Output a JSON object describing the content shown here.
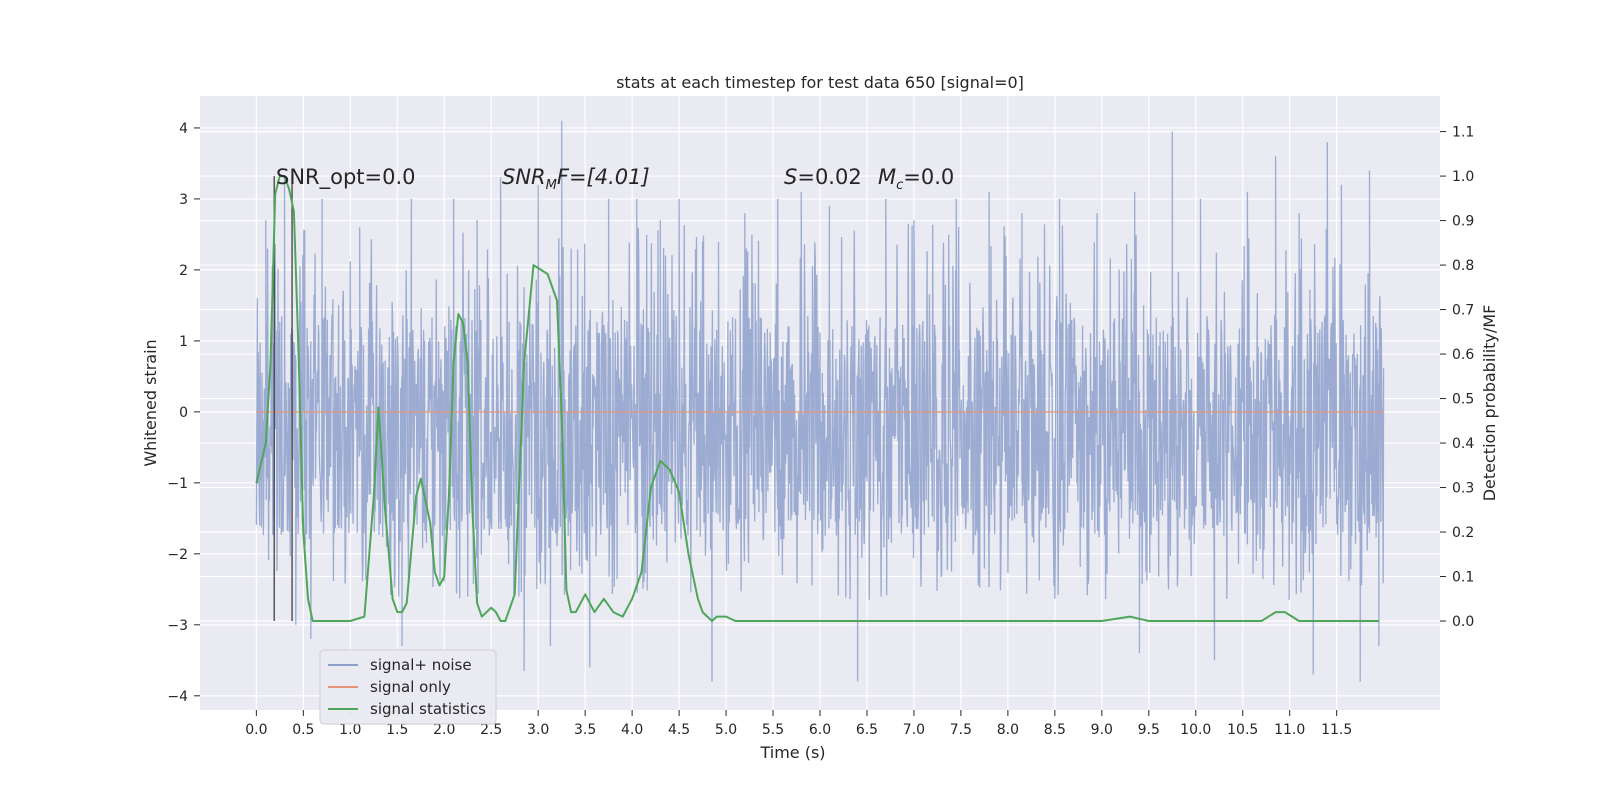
{
  "chart_data": {
    "type": "line",
    "title": "stats at each timestep for test data 650 [signal=0]",
    "xlabel": "Time (s)",
    "ylabel": "Whitened strain",
    "y2label": "Detection probability/MF",
    "xlim": [
      -0.6,
      12.6
    ],
    "ylim": [
      -4.2,
      4.45
    ],
    "y2lim": [
      -0.2,
      1.18
    ],
    "x_ticks": [
      "0.0",
      "0.5",
      "1.0",
      "1.5",
      "2.0",
      "2.5",
      "3.0",
      "3.5",
      "4.0",
      "4.5",
      "5.0",
      "5.5",
      "6.0",
      "6.5",
      "7.0",
      "7.5",
      "8.0",
      "8.5",
      "9.0",
      "9.5",
      "10.0",
      "10.5",
      "11.0",
      "11.5"
    ],
    "y_ticks": [
      "4",
      "3",
      "2",
      "1",
      "0",
      "−1",
      "−2",
      "−3",
      "−4"
    ],
    "y2_ticks": [
      "1.1",
      "1.0",
      "0.9",
      "0.8",
      "0.7",
      "0.6",
      "0.5",
      "0.4",
      "0.3",
      "0.2",
      "0.1",
      "0.0"
    ],
    "grid": true,
    "legend_position": "lower-left",
    "annotations": {
      "snr_opt": "SNR_opt=0.0",
      "snr_mf_symbol": "SNR",
      "snr_mf_sub": "M",
      "snr_mf_rest": "F=[4.01]",
      "s_symbol": "S",
      "s_rest": "=0.02",
      "mc_symbol": "M",
      "mc_sub": "c",
      "mc_rest": "=0.0"
    },
    "vertical_markers_x": [
      0.19,
      0.38
    ],
    "noise_band": {
      "x_range": [
        0.0,
        12.0
      ],
      "dense_low": -1.75,
      "dense_high": 1.35,
      "max_spike": 4.1,
      "min_spike": -3.8
    },
    "series": [
      {
        "name": "signal+ noise",
        "color": "#8da0cb",
        "axis": "left",
        "peaks": [
          {
            "x": 0.1,
            "y": 2.7
          },
          {
            "x": 0.3,
            "y": 3.3
          },
          {
            "x": 0.42,
            "y": -3.0
          },
          {
            "x": 0.58,
            "y": -3.2
          },
          {
            "x": 0.7,
            "y": 3.0
          },
          {
            "x": 1.1,
            "y": 2.6
          },
          {
            "x": 1.55,
            "y": -3.3
          },
          {
            "x": 1.65,
            "y": 3.0
          },
          {
            "x": 2.1,
            "y": 3.0
          },
          {
            "x": 2.35,
            "y": 2.7
          },
          {
            "x": 2.6,
            "y": 3.3
          },
          {
            "x": 2.85,
            "y": -3.65
          },
          {
            "x": 3.0,
            "y": 3.2
          },
          {
            "x": 3.13,
            "y": -3.3
          },
          {
            "x": 3.25,
            "y": 4.1
          },
          {
            "x": 3.35,
            "y": 2.3
          },
          {
            "x": 3.55,
            "y": -3.6
          },
          {
            "x": 3.75,
            "y": 3.0
          },
          {
            "x": 4.05,
            "y": 3.0
          },
          {
            "x": 4.3,
            "y": 2.7
          },
          {
            "x": 4.5,
            "y": 3.0
          },
          {
            "x": 4.85,
            "y": -3.8
          },
          {
            "x": 5.2,
            "y": 2.8
          },
          {
            "x": 5.55,
            "y": 3.0
          },
          {
            "x": 5.8,
            "y": 3.1
          },
          {
            "x": 6.1,
            "y": 2.9
          },
          {
            "x": 6.4,
            "y": -3.8
          },
          {
            "x": 6.7,
            "y": 3.0
          },
          {
            "x": 7.0,
            "y": 2.7
          },
          {
            "x": 7.45,
            "y": 3.0
          },
          {
            "x": 7.8,
            "y": 3.1
          },
          {
            "x": 8.15,
            "y": 2.8
          },
          {
            "x": 8.55,
            "y": 3.0
          },
          {
            "x": 8.95,
            "y": 2.8
          },
          {
            "x": 9.35,
            "y": 3.1
          },
          {
            "x": 9.4,
            "y": -3.4
          },
          {
            "x": 9.75,
            "y": 3.95
          },
          {
            "x": 10.05,
            "y": 3.0
          },
          {
            "x": 10.2,
            "y": -3.5
          },
          {
            "x": 10.55,
            "y": 3.1
          },
          {
            "x": 10.85,
            "y": 3.6
          },
          {
            "x": 11.1,
            "y": 2.8
          },
          {
            "x": 11.25,
            "y": -3.7
          },
          {
            "x": 11.4,
            "y": 3.8
          },
          {
            "x": 11.55,
            "y": 3.2
          },
          {
            "x": 11.75,
            "y": -3.8
          },
          {
            "x": 11.85,
            "y": 3.4
          },
          {
            "x": 11.95,
            "y": -3.3
          }
        ]
      },
      {
        "name": "signal only",
        "color": "#e5967a",
        "axis": "left",
        "x": [
          0.0,
          12.0
        ],
        "y": [
          0.0,
          0.0
        ]
      },
      {
        "name": "signal statistics",
        "color": "#4fa65a",
        "axis": "right",
        "x": [
          0.0,
          0.1,
          0.15,
          0.2,
          0.25,
          0.3,
          0.35,
          0.4,
          0.45,
          0.5,
          0.55,
          0.6,
          0.7,
          1.0,
          1.15,
          1.25,
          1.3,
          1.37,
          1.45,
          1.5,
          1.55,
          1.6,
          1.7,
          1.75,
          1.85,
          1.9,
          1.95,
          2.0,
          2.05,
          2.1,
          2.15,
          2.2,
          2.25,
          2.3,
          2.35,
          2.4,
          2.45,
          2.5,
          2.55,
          2.6,
          2.65,
          2.75,
          2.85,
          2.95,
          3.1,
          3.2,
          3.25,
          3.3,
          3.35,
          3.4,
          3.45,
          3.5,
          3.55,
          3.6,
          3.7,
          3.8,
          3.9,
          4.0,
          4.1,
          4.2,
          4.3,
          4.4,
          4.5,
          4.6,
          4.7,
          4.75,
          4.8,
          4.85,
          4.9,
          4.95,
          5.0,
          5.1,
          5.2,
          5.4,
          5.55,
          5.65,
          5.8,
          6.0,
          6.2,
          7.0,
          7.5,
          8.0,
          8.5,
          9.0,
          9.3,
          9.5,
          10.0,
          10.5,
          10.7,
          10.85,
          10.95,
          11.1,
          11.3,
          11.45,
          11.6,
          11.8,
          11.95
        ],
        "y": [
          0.31,
          0.4,
          0.58,
          0.96,
          1.0,
          1.0,
          0.97,
          0.92,
          0.6,
          0.2,
          0.05,
          0.0,
          0.0,
          0.0,
          0.01,
          0.28,
          0.48,
          0.25,
          0.05,
          0.02,
          0.02,
          0.04,
          0.28,
          0.32,
          0.22,
          0.11,
          0.08,
          0.1,
          0.28,
          0.58,
          0.69,
          0.67,
          0.58,
          0.25,
          0.04,
          0.01,
          0.02,
          0.03,
          0.02,
          0.0,
          0.0,
          0.06,
          0.58,
          0.8,
          0.78,
          0.72,
          0.46,
          0.07,
          0.02,
          0.02,
          0.04,
          0.06,
          0.04,
          0.02,
          0.05,
          0.02,
          0.01,
          0.05,
          0.11,
          0.3,
          0.36,
          0.34,
          0.29,
          0.15,
          0.05,
          0.02,
          0.01,
          0.0,
          0.01,
          0.01,
          0.01,
          0.0,
          0.0,
          0.0,
          0.0,
          0.0,
          0.0,
          0.0,
          0.0,
          0.0,
          0.0,
          0.0,
          0.0,
          0.0,
          0.01,
          0.0,
          0.0,
          0.0,
          0.0,
          0.02,
          0.02,
          0.0,
          0.0,
          0.0,
          0.0,
          0.0,
          0.0
        ]
      }
    ]
  }
}
